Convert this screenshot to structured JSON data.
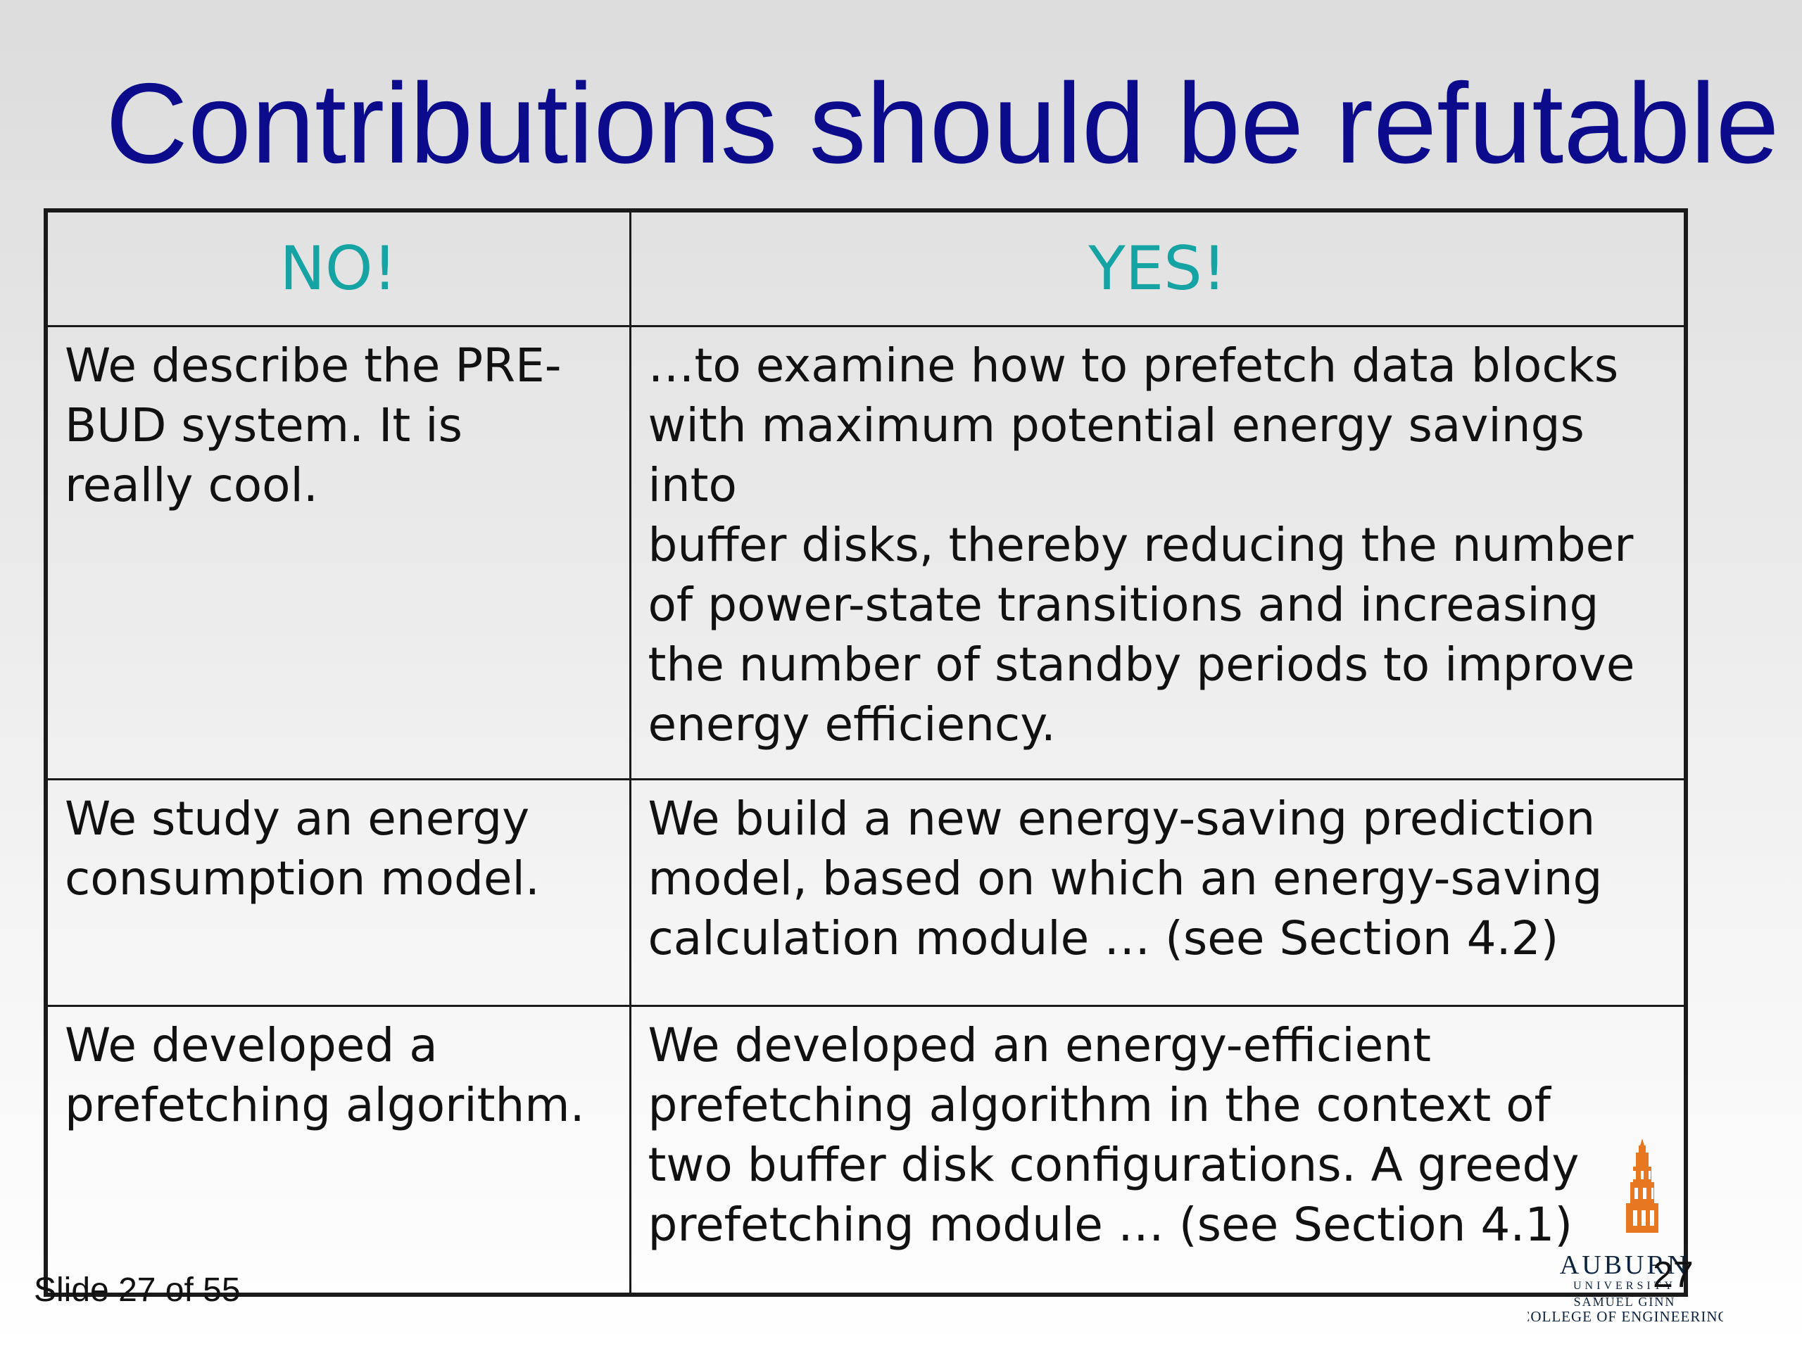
{
  "slide": {
    "title": "Contributions should be refutable",
    "slide_label": "Slide 27 of 55",
    "page_number": "27"
  },
  "table": {
    "headers": {
      "no": "NO!",
      "yes": "YES!"
    },
    "rows": [
      {
        "no": "We describe the PRE-\nBUD system.  It is\nreally cool.",
        "yes": "…to examine how to prefetch data blocks\nwith maximum potential energy savings into\nbuffer disks, thereby reducing the number\nof power-state transitions and increasing\nthe number of standby periods to improve\nenergy efficiency."
      },
      {
        "no": "We study an energy\nconsumption model.",
        "yes": "We build a new energy-saving prediction\nmodel, based on which an energy-saving\ncalculation module … (see Section 4.2)"
      },
      {
        "no": "We developed a\nprefetching  algorithm.",
        "yes": "We developed an energy-efficient\nprefetching algorithm in the context of\ntwo buffer disk configurations. A greedy\nprefetching module …  (see Section 4.1)"
      }
    ]
  },
  "logo": {
    "name": "AUBURN",
    "subtitle": "UNIVERSITY",
    "college_line1": "SAMUEL GINN",
    "college_line2": "COLLEGE OF ENGINEERING",
    "icon": "samford-tower-icon",
    "colors": {
      "orange": "#e87722",
      "navy": "#0c2340"
    }
  },
  "colors": {
    "title": "#0b0b8c",
    "header_text": "#16a3a3",
    "body_text": "#111111"
  }
}
